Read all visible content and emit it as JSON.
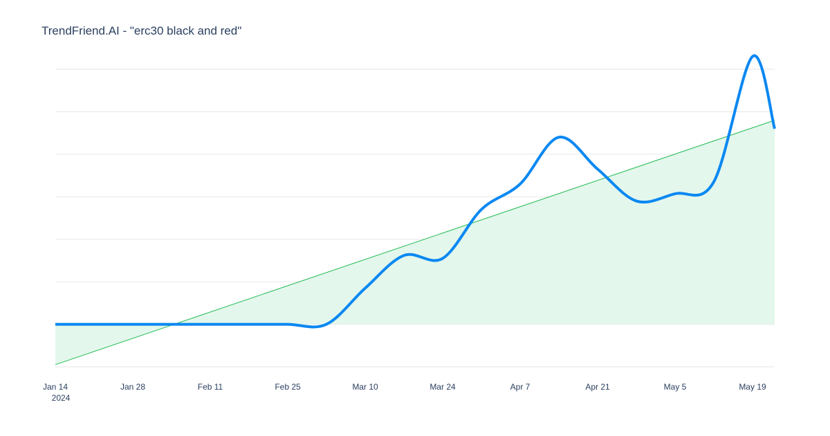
{
  "chart_data": {
    "type": "line",
    "title": "TrendFriend.AI - \"erc30 black and red\"",
    "xlabel": "",
    "ylabel": "",
    "x_tick_labels": [
      "Jan 14",
      "Jan 28",
      "Feb 11",
      "Feb 25",
      "Mar 10",
      "Mar 24",
      "Apr 7",
      "Apr 21",
      "May 5",
      "May 19"
    ],
    "x_tick_year": "2024",
    "x_range": [
      "2024-01-14",
      "2024-05-23"
    ],
    "ylim": [
      -1,
      6
    ],
    "y_tick_values": [
      -1,
      0,
      1,
      2,
      3,
      4,
      5,
      6
    ],
    "y_tick_labels_visible": false,
    "grid": true,
    "legend": "none",
    "series": [
      {
        "type": "spline",
        "color": "#0a88f2",
        "points": [
          {
            "x": "2024-01-14",
            "y": 0
          },
          {
            "x": "2024-01-21",
            "y": 0
          },
          {
            "x": "2024-01-28",
            "y": 0
          },
          {
            "x": "2024-02-04",
            "y": 0
          },
          {
            "x": "2024-02-11",
            "y": 0
          },
          {
            "x": "2024-02-18",
            "y": 0
          },
          {
            "x": "2024-02-25",
            "y": 0
          },
          {
            "x": "2024-03-03",
            "y": 0
          },
          {
            "x": "2024-03-10",
            "y": 0.85
          },
          {
            "x": "2024-03-17",
            "y": 1.62
          },
          {
            "x": "2024-03-24",
            "y": 1.55
          },
          {
            "x": "2024-03-31",
            "y": 2.7
          },
          {
            "x": "2024-04-07",
            "y": 3.3
          },
          {
            "x": "2024-04-14",
            "y": 4.4
          },
          {
            "x": "2024-04-21",
            "y": 3.65
          },
          {
            "x": "2024-04-28",
            "y": 2.9
          },
          {
            "x": "2024-05-05",
            "y": 3.07
          },
          {
            "x": "2024-05-12",
            "y": 3.35
          },
          {
            "x": "2024-05-19",
            "y": 6.3
          },
          {
            "x": "2024-05-23",
            "y": 4.6
          }
        ]
      },
      {
        "type": "trend",
        "color": "#22bb55",
        "fill": "#e3f7ec",
        "fill_to": 0,
        "start": {
          "x": "2024-01-14",
          "y": -0.95
        },
        "end": {
          "x": "2024-05-23",
          "y": 4.8
        }
      }
    ]
  }
}
